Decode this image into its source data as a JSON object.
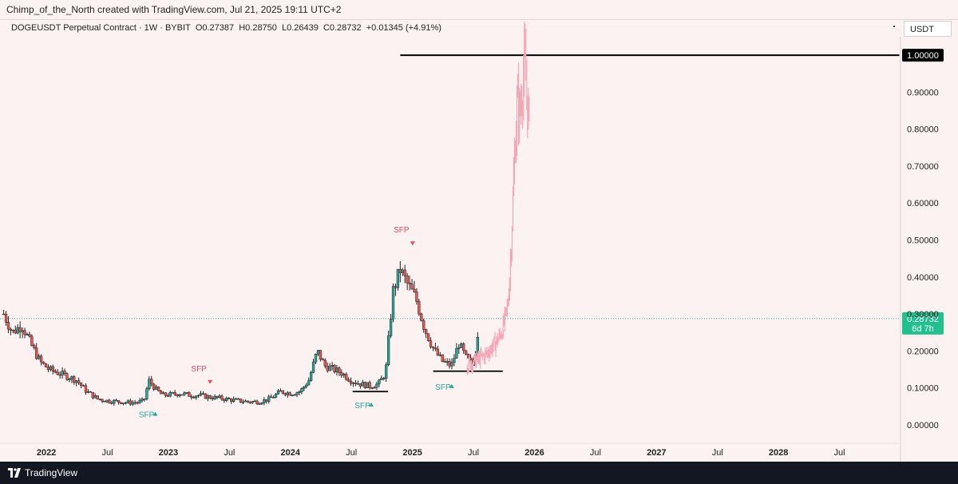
{
  "header": {
    "credit": "Chimp_of_the_North created with TradingView.com, Jul 21, 2025 19:11 UTC+2"
  },
  "legend": {
    "symbol": "DOGEUSDT Perpetual Contract · 1W · BYBIT",
    "open": "O0.27387",
    "high": "H0.28750",
    "low": "L0.26439",
    "close": "C0.28732",
    "change": "+0.01345 (+4.91%)"
  },
  "currency": "USDT",
  "footer": {
    "brand": "TradingView"
  },
  "colors": {
    "up": "#26a69a",
    "down": "#ef5350",
    "candle": "#222222",
    "projection": "#f3a6b6",
    "price_tag": "#22c08f",
    "sfp_up": "#26a69a",
    "sfp_down": "#e5495d"
  },
  "chart_data": {
    "type": "candlestick",
    "ylim": [
      -0.05,
      1.05
    ],
    "y_ticks": [
      "0.10000",
      "0.20000",
      "0.30000",
      "0.40000",
      "0.50000",
      "0.60000",
      "0.70000",
      "0.80000",
      "0.90000",
      "1.00000"
    ],
    "y_tick_values": [
      0.1,
      0.2,
      0.3,
      0.4,
      0.5,
      0.6,
      0.7,
      0.8,
      0.9,
      1.0
    ],
    "y_zero_label": "0.00000",
    "x_tick_labels": [
      {
        "t": 2022.0,
        "label": "2022",
        "bold": true
      },
      {
        "t": 2022.5,
        "label": "Jul",
        "bold": false
      },
      {
        "t": 2023.0,
        "label": "2023",
        "bold": true
      },
      {
        "t": 2023.5,
        "label": "Jul",
        "bold": false
      },
      {
        "t": 2024.0,
        "label": "2024",
        "bold": true
      },
      {
        "t": 2024.5,
        "label": "Jul",
        "bold": false
      },
      {
        "t": 2025.0,
        "label": "2025",
        "bold": true
      },
      {
        "t": 2025.5,
        "label": "Jul",
        "bold": false
      },
      {
        "t": 2026.0,
        "label": "2026",
        "bold": true
      },
      {
        "t": 2026.5,
        "label": "Jul",
        "bold": false
      },
      {
        "t": 2027.0,
        "label": "2027",
        "bold": true
      },
      {
        "t": 2027.5,
        "label": "Jul",
        "bold": false
      },
      {
        "t": 2028.0,
        "label": "2028",
        "bold": true
      },
      {
        "t": 2028.5,
        "label": "Jul",
        "bold": false
      }
    ],
    "price_series": [
      [
        2021.65,
        0.3
      ],
      [
        2021.72,
        0.25
      ],
      [
        2021.8,
        0.27
      ],
      [
        2021.87,
        0.22
      ],
      [
        2021.95,
        0.17
      ],
      [
        2022.02,
        0.15
      ],
      [
        2022.1,
        0.14
      ],
      [
        2022.18,
        0.13
      ],
      [
        2022.25,
        0.12
      ],
      [
        2022.33,
        0.09
      ],
      [
        2022.42,
        0.07
      ],
      [
        2022.5,
        0.065
      ],
      [
        2022.58,
        0.063
      ],
      [
        2022.67,
        0.06
      ],
      [
        2022.75,
        0.061
      ],
      [
        2022.8,
        0.065
      ],
      [
        2022.84,
        0.12
      ],
      [
        2022.9,
        0.095
      ],
      [
        2022.95,
        0.08
      ],
      [
        2023.02,
        0.082
      ],
      [
        2023.1,
        0.085
      ],
      [
        2023.18,
        0.08
      ],
      [
        2023.25,
        0.08
      ],
      [
        2023.33,
        0.075
      ],
      [
        2023.42,
        0.072
      ],
      [
        2023.5,
        0.068
      ],
      [
        2023.58,
        0.065
      ],
      [
        2023.67,
        0.062
      ],
      [
        2023.75,
        0.063
      ],
      [
        2023.83,
        0.07
      ],
      [
        2023.92,
        0.09
      ],
      [
        2024.0,
        0.085
      ],
      [
        2024.08,
        0.09
      ],
      [
        2024.15,
        0.12
      ],
      [
        2024.22,
        0.2
      ],
      [
        2024.28,
        0.16
      ],
      [
        2024.35,
        0.15
      ],
      [
        2024.42,
        0.14
      ],
      [
        2024.5,
        0.12
      ],
      [
        2024.58,
        0.11
      ],
      [
        2024.65,
        0.105
      ],
      [
        2024.72,
        0.11
      ],
      [
        2024.78,
        0.14
      ],
      [
        2024.84,
        0.36
      ],
      [
        2024.9,
        0.42
      ],
      [
        2024.96,
        0.38
      ],
      [
        2025.03,
        0.34
      ],
      [
        2025.1,
        0.26
      ],
      [
        2025.18,
        0.2
      ],
      [
        2025.25,
        0.17
      ],
      [
        2025.32,
        0.16
      ],
      [
        2025.38,
        0.22
      ],
      [
        2025.44,
        0.18
      ],
      [
        2025.5,
        0.16
      ],
      [
        2025.55,
        0.287
      ]
    ],
    "projection_series": [
      [
        2025.45,
        0.16
      ],
      [
        2025.5,
        0.17
      ],
      [
        2025.55,
        0.18
      ],
      [
        2025.6,
        0.19
      ],
      [
        2025.65,
        0.21
      ],
      [
        2025.7,
        0.23
      ],
      [
        2025.74,
        0.26
      ],
      [
        2025.78,
        0.32
      ],
      [
        2025.8,
        0.42
      ],
      [
        2025.82,
        0.58
      ],
      [
        2025.84,
        0.75
      ],
      [
        2025.86,
        0.88
      ],
      [
        2025.88,
        0.84
      ],
      [
        2025.9,
        0.92
      ],
      [
        2025.92,
        0.98
      ],
      [
        2025.94,
        0.88
      ],
      [
        2025.96,
        0.8
      ]
    ],
    "horizontal_levels": [
      {
        "y": 1.0,
        "t_start": 2024.9,
        "t_end": 2028.99,
        "label": "1.00000"
      },
      {
        "y": 0.145,
        "t_start": 2025.17,
        "t_end": 2025.74,
        "label": ""
      },
      {
        "y": 0.09,
        "t_start": 2024.51,
        "t_end": 2024.8,
        "label": ""
      }
    ],
    "current_price": {
      "value": 0.28732,
      "label": "0.28732",
      "countdown": "6d 7h"
    },
    "annotations": [
      {
        "text": "SFP",
        "t": 2022.82,
        "y": 0.02,
        "color": "sfp_up",
        "marker": "up"
      },
      {
        "text": "SFP",
        "t": 2023.25,
        "y": 0.145,
        "color": "sfp_down",
        "marker": "down"
      },
      {
        "text": "SFP",
        "t": 2024.59,
        "y": 0.045,
        "color": "sfp_up",
        "marker": "up"
      },
      {
        "text": "SFP",
        "t": 2024.91,
        "y": 0.52,
        "color": "sfp_down",
        "marker": "down"
      },
      {
        "text": "SFP",
        "t": 2025.25,
        "y": 0.095,
        "color": "sfp_up",
        "marker": "up"
      }
    ]
  }
}
